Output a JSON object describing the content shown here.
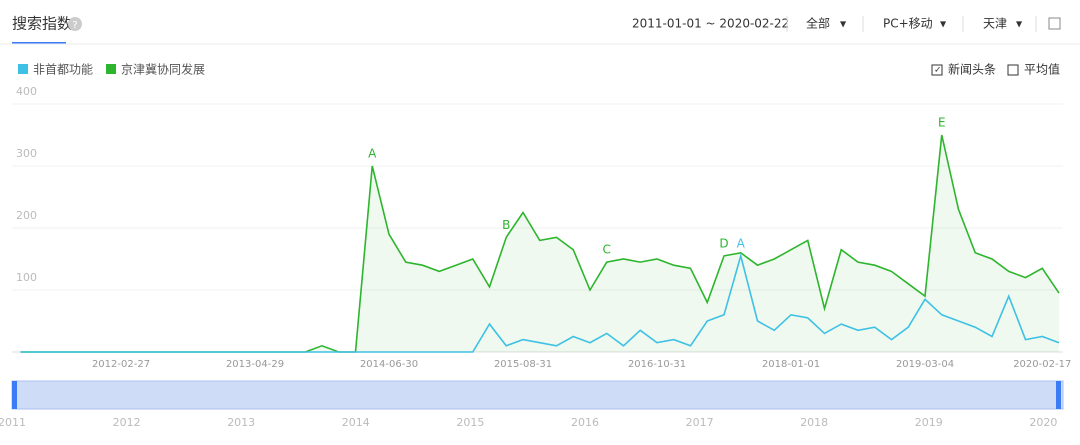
{
  "header": {
    "tab": "搜索指数",
    "date_range": "2011-01-01 ~ 2020-02-22",
    "filters": [
      "全部",
      "PC+移动",
      "天津"
    ]
  },
  "options": [
    "新闻头条",
    "平均值"
  ],
  "chart_data": {
    "type": "line",
    "categories": [
      null,
      null,
      null,
      null,
      null,
      null,
      "2012-02-27",
      null,
      null,
      null,
      null,
      null,
      null,
      null,
      "2013-04-29",
      null,
      null,
      null,
      null,
      null,
      null,
      null,
      "2014-06-30",
      null,
      null,
      null,
      null,
      null,
      null,
      null,
      "2015-08-31",
      null,
      null,
      null,
      null,
      null,
      null,
      null,
      "2016-10-31",
      null,
      null,
      null,
      null,
      null,
      null,
      null,
      "2018-01-01",
      null,
      null,
      null,
      null,
      null,
      null,
      null,
      "2019-03-04",
      null,
      null,
      null,
      null,
      null,
      null,
      "2020-02-17",
      null
    ],
    "series": [
      {
        "name": "非首都功能",
        "color": "#3ec1e4",
        "values": [
          0,
          0,
          0,
          0,
          0,
          0,
          0,
          0,
          0,
          0,
          0,
          0,
          0,
          0,
          0,
          0,
          0,
          0,
          0,
          0,
          0,
          0,
          0,
          0,
          0,
          0,
          0,
          0,
          45,
          10,
          20,
          15,
          10,
          25,
          15,
          30,
          10,
          35,
          15,
          20,
          10,
          50,
          60,
          155,
          50,
          35,
          60,
          55,
          30,
          45,
          35,
          40,
          20,
          40,
          85,
          60,
          50,
          40,
          25,
          90,
          20,
          25,
          15
        ],
        "markers": [
          null,
          null,
          null,
          null,
          null,
          null,
          null,
          null,
          null,
          null,
          null,
          null,
          null,
          null,
          null,
          null,
          null,
          null,
          null,
          null,
          null,
          null,
          null,
          null,
          null,
          null,
          null,
          null,
          null,
          null,
          null,
          null,
          null,
          null,
          null,
          null,
          null,
          null,
          null,
          null,
          null,
          null,
          null,
          "A",
          null,
          null,
          null,
          null,
          null,
          null,
          null,
          null,
          null,
          null,
          null,
          null,
          null,
          null,
          null,
          null,
          null,
          null,
          null
        ]
      },
      {
        "name": "京津冀协同发展",
        "color": "#2db52d",
        "values": [
          0,
          0,
          0,
          0,
          0,
          0,
          0,
          0,
          0,
          0,
          0,
          0,
          0,
          0,
          0,
          0,
          0,
          0,
          10,
          0,
          0,
          300,
          190,
          145,
          140,
          130,
          140,
          150,
          105,
          185,
          225,
          180,
          185,
          165,
          100,
          145,
          150,
          145,
          150,
          140,
          135,
          80,
          155,
          160,
          140,
          150,
          165,
          180,
          70,
          165,
          145,
          140,
          130,
          110,
          90,
          350,
          230,
          160,
          150,
          130,
          120,
          135,
          95
        ],
        "markers": [
          null,
          null,
          null,
          null,
          null,
          null,
          null,
          null,
          null,
          null,
          null,
          null,
          null,
          null,
          null,
          null,
          null,
          null,
          null,
          null,
          null,
          "A",
          null,
          null,
          null,
          null,
          null,
          null,
          null,
          "B",
          null,
          null,
          null,
          null,
          null,
          "C",
          null,
          null,
          null,
          null,
          null,
          null,
          "D",
          null,
          null,
          null,
          null,
          null,
          null,
          null,
          null,
          null,
          null,
          null,
          null,
          "E",
          null,
          null,
          null,
          null,
          null,
          null,
          null
        ]
      }
    ],
    "ylim": [
      0,
      400
    ],
    "yticks": [
      100,
      200,
      300,
      400
    ],
    "grid": true,
    "navigator": [
      "2011",
      "2012",
      "2013",
      "2014",
      "2015",
      "2016",
      "2017",
      "2018",
      "2019",
      "2020"
    ]
  }
}
